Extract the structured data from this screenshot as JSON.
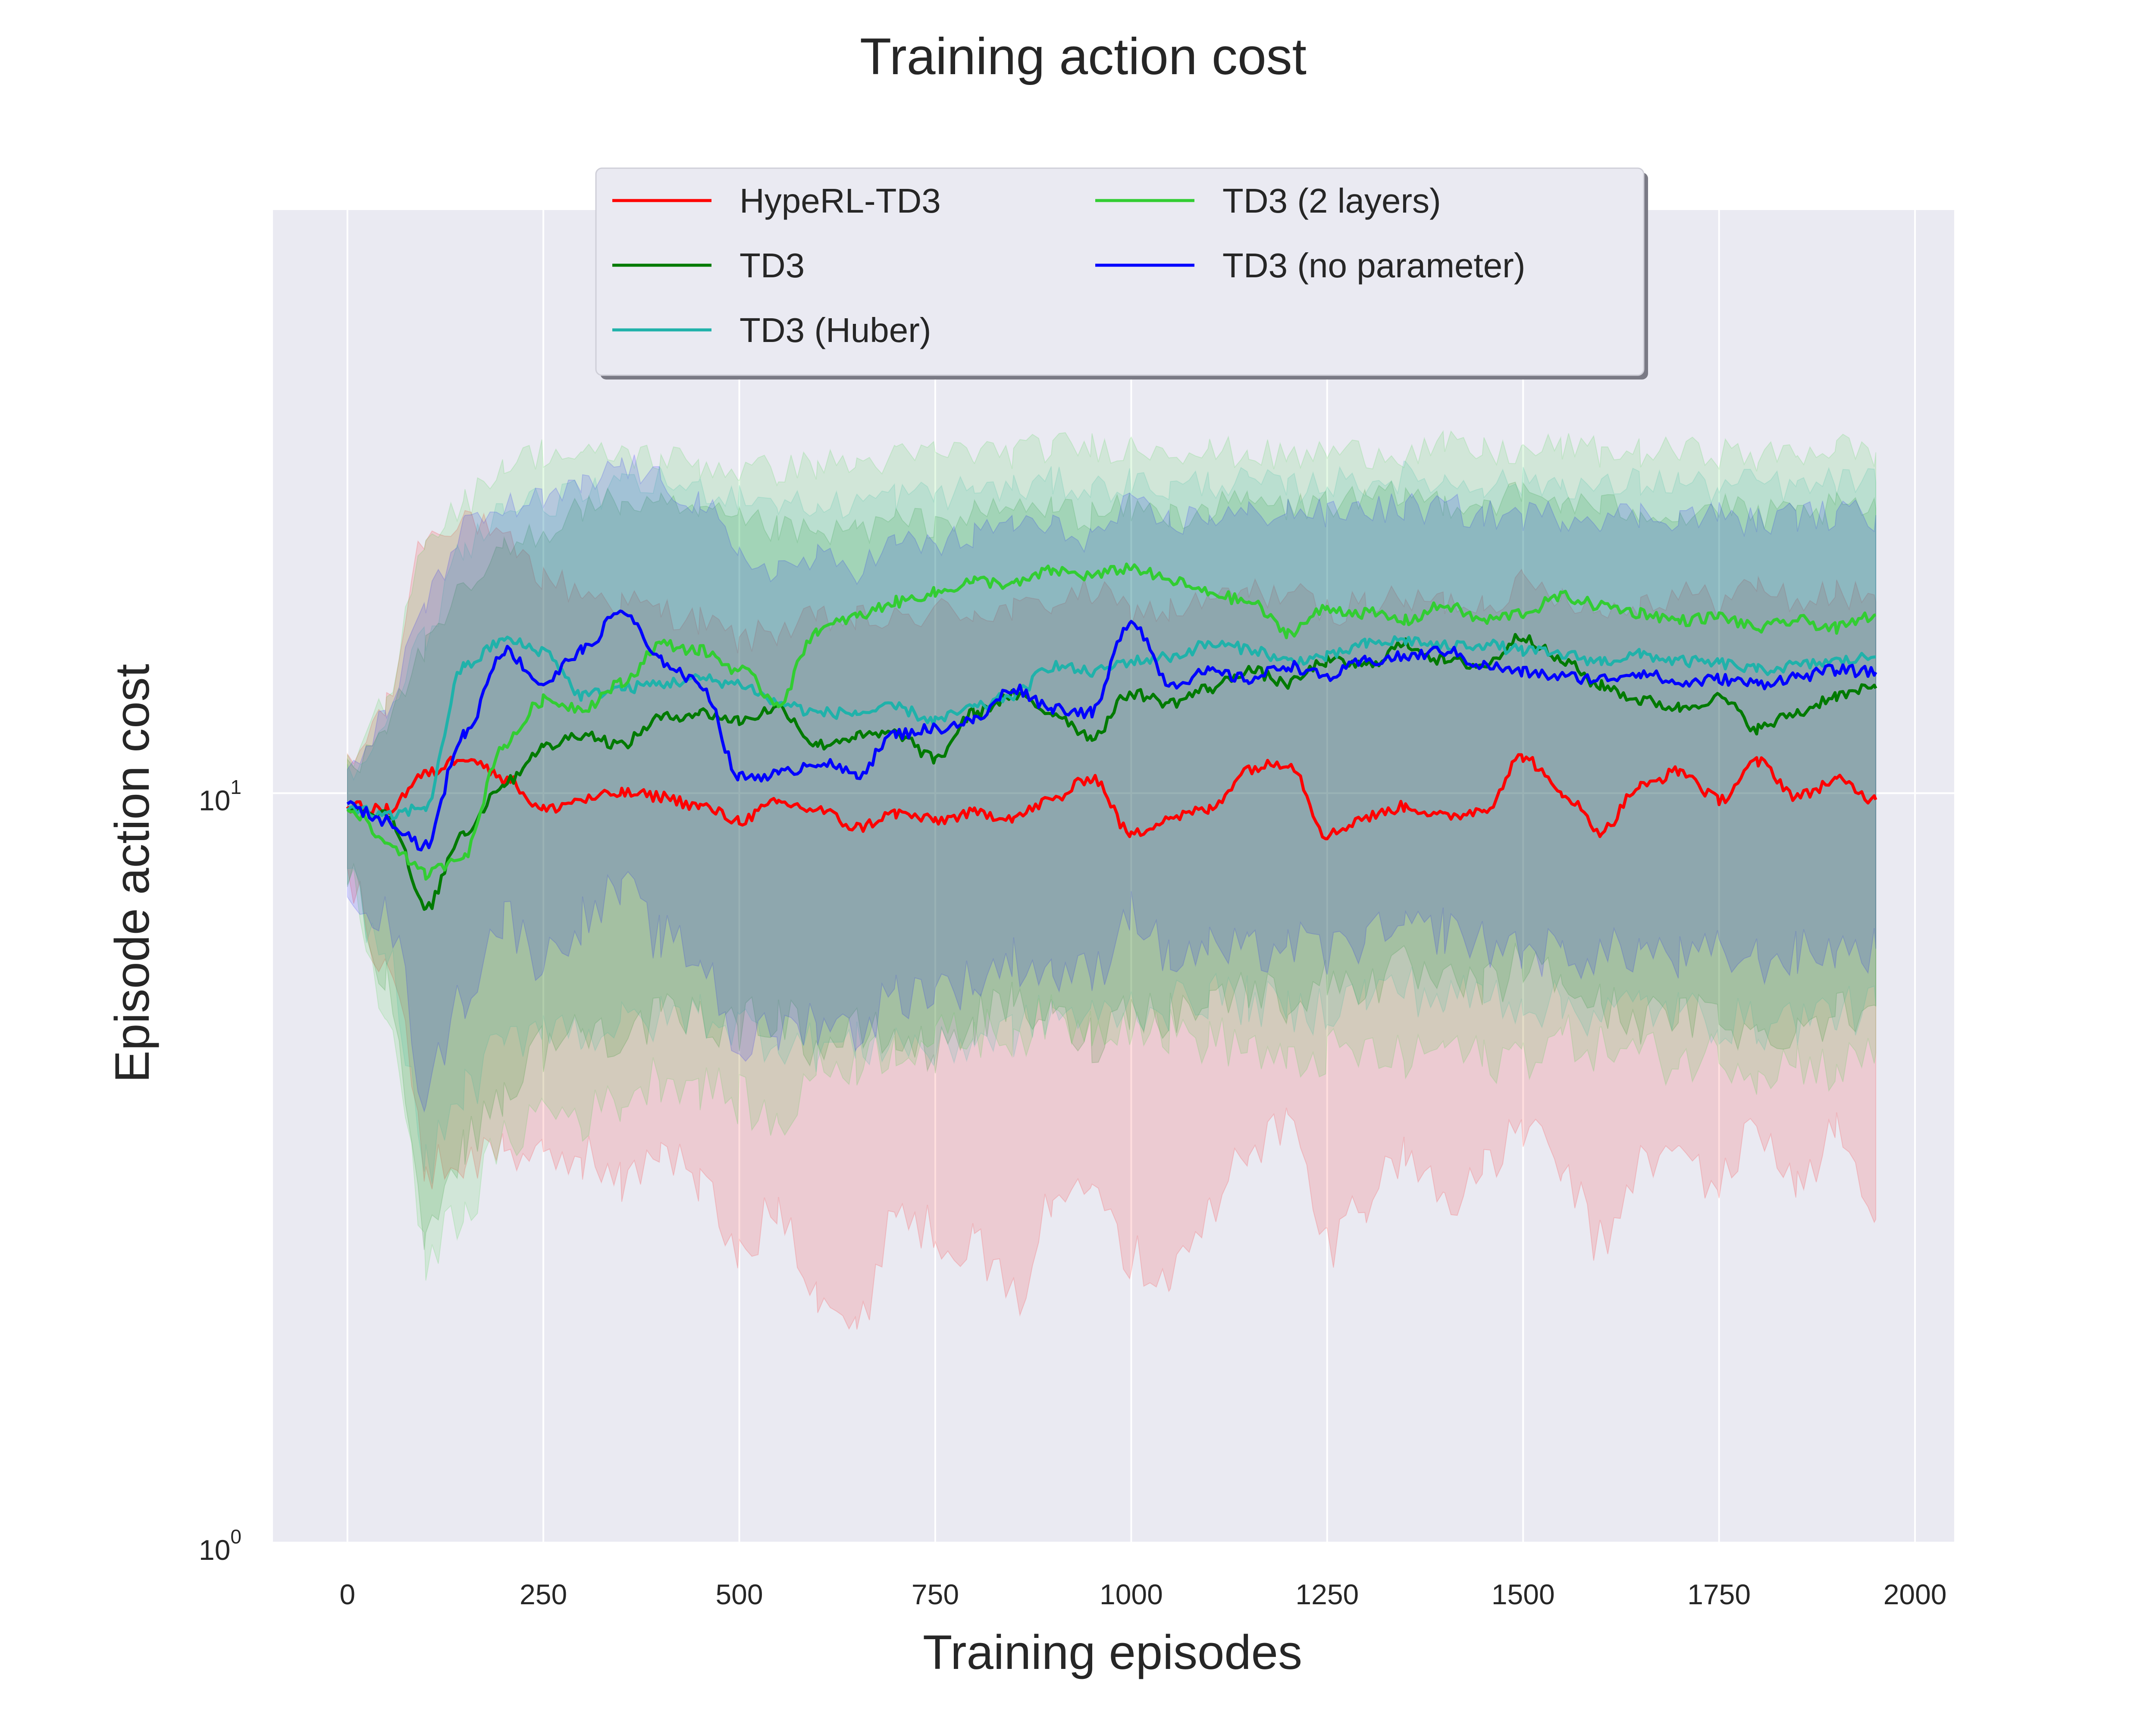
{
  "chart_data": {
    "type": "line",
    "title": "Training action cost",
    "xlabel": "Training episodes",
    "ylabel": "Episode action cost",
    "xlim": [
      -95,
      2050
    ],
    "ylim": [
      1,
      60
    ],
    "yscale": "log",
    "grid": true,
    "legend_position": "top-center",
    "x_ticks": [
      "0",
      "250",
      "500",
      "750",
      "1000",
      "1250",
      "1500",
      "1750",
      "2000"
    ],
    "y_ticks": [
      {
        "base": "10",
        "exp": "0",
        "value": 1
      },
      {
        "base": "10",
        "exp": "1",
        "value": 10
      }
    ],
    "x": [
      0,
      50,
      100,
      150,
      200,
      250,
      300,
      350,
      400,
      450,
      500,
      550,
      600,
      650,
      700,
      750,
      800,
      850,
      900,
      950,
      1000,
      1050,
      1100,
      1150,
      1200,
      1250,
      1300,
      1350,
      1400,
      1450,
      1500,
      1550,
      1600,
      1650,
      1700,
      1750,
      1800,
      1850,
      1900,
      1950
    ],
    "series": [
      {
        "name": "HypeRL-TD3",
        "color": "#ff0000",
        "values": [
          9.6,
          9.5,
          10.6,
          11.2,
          10.5,
          9.5,
          9.8,
          10.0,
          9.9,
          9.6,
          9.2,
          9.7,
          9.5,
          9.0,
          9.4,
          9.2,
          9.4,
          9.3,
          9.8,
          10.5,
          8.8,
          9.3,
          9.5,
          10.8,
          11.0,
          8.8,
          9.3,
          9.6,
          9.3,
          9.5,
          11.2,
          10.0,
          8.9,
          10.2,
          10.7,
          9.8,
          11.0,
          9.9,
          10.4,
          9.8
        ],
        "upper": [
          10.8,
          13.0,
          22.0,
          23.5,
          21.5,
          19.5,
          18.5,
          18.0,
          17.5,
          17.0,
          16.0,
          16.5,
          17.0,
          17.0,
          17.0,
          17.5,
          17.5,
          17.5,
          18.0,
          18.5,
          17.5,
          17.5,
          18.0,
          18.5,
          18.5,
          17.5,
          18.0,
          18.0,
          18.0,
          18.0,
          19.0,
          18.5,
          17.5,
          18.0,
          18.5,
          18.0,
          19.0,
          18.0,
          18.5,
          18.0
        ],
        "lower": [
          7.6,
          6.0,
          3.2,
          3.2,
          3.4,
          3.2,
          3.3,
          3.0,
          3.4,
          3.0,
          2.4,
          2.8,
          2.2,
          1.9,
          2.8,
          2.6,
          2.5,
          2.1,
          2.8,
          3.2,
          2.4,
          2.3,
          2.7,
          3.4,
          3.6,
          2.5,
          2.9,
          3.3,
          2.9,
          3.1,
          3.6,
          3.1,
          2.5,
          3.2,
          3.3,
          3.0,
          3.6,
          3.0,
          3.5,
          2.7
        ]
      },
      {
        "name": "TD3",
        "color": "#007a00",
        "values": [
          9.6,
          9.4,
          7.0,
          8.9,
          10.3,
          11.5,
          12.0,
          11.6,
          12.6,
          12.8,
          12.5,
          13.0,
          11.6,
          11.9,
          12.0,
          11.1,
          12.8,
          13.5,
          12.8,
          11.9,
          13.6,
          13.2,
          13.8,
          14.6,
          14.0,
          15.0,
          14.8,
          15.8,
          15.0,
          14.8,
          16.2,
          15.0,
          13.9,
          13.3,
          13.0,
          13.4,
          12.2,
          12.8,
          13.5,
          13.8
        ],
        "upper": [
          10.8,
          12.5,
          15.5,
          18.5,
          21.0,
          22.5,
          24.0,
          24.5,
          24.0,
          23.5,
          23.0,
          22.5,
          22.0,
          22.5,
          23.0,
          23.0,
          23.5,
          24.0,
          24.0,
          23.5,
          24.0,
          23.5,
          24.0,
          24.5,
          24.0,
          24.5,
          24.5,
          25.0,
          24.5,
          24.5,
          25.0,
          24.5,
          24.0,
          24.0,
          23.5,
          24.0,
          23.5,
          23.5,
          24.0,
          24.0
        ],
        "lower": [
          7.6,
          5.6,
          2.6,
          3.4,
          4.0,
          4.6,
          4.8,
          4.8,
          5.0,
          5.0,
          4.9,
          5.1,
          4.6,
          4.8,
          4.7,
          4.5,
          5.0,
          5.2,
          5.0,
          4.7,
          5.2,
          5.1,
          5.3,
          5.5,
          5.3,
          5.6,
          5.6,
          5.8,
          5.5,
          5.5,
          5.9,
          5.6,
          5.2,
          5.0,
          5.0,
          5.1,
          4.7,
          4.9,
          5.1,
          5.2
        ]
      },
      {
        "name": "TD3 (Huber)",
        "color": "#20b2aa",
        "values": [
          9.6,
          9.3,
          9.6,
          14.8,
          16.0,
          15.5,
          13.5,
          13.8,
          14.0,
          14.2,
          14.0,
          13.2,
          12.8,
          12.8,
          13.0,
          12.5,
          13.0,
          13.5,
          14.8,
          14.5,
          15.0,
          15.2,
          15.8,
          15.6,
          15.0,
          15.2,
          15.8,
          16.0,
          15.7,
          15.8,
          15.5,
          15.3,
          15.0,
          15.3,
          15.0,
          14.9,
          14.6,
          14.8,
          15.0,
          15.2
        ],
        "upper": [
          10.8,
          12.5,
          16.0,
          21.5,
          24.0,
          24.5,
          25.0,
          25.5,
          26.0,
          25.5,
          25.0,
          24.5,
          24.0,
          24.5,
          25.0,
          25.0,
          25.5,
          25.5,
          26.0,
          25.5,
          26.0,
          25.5,
          26.0,
          26.0,
          25.5,
          26.0,
          26.0,
          26.5,
          26.0,
          26.0,
          26.0,
          26.0,
          25.5,
          26.0,
          26.0,
          25.5,
          26.0,
          25.5,
          26.0,
          26.0
        ],
        "lower": [
          7.6,
          6.0,
          3.2,
          4.0,
          4.6,
          5.0,
          4.8,
          4.9,
          5.0,
          5.1,
          4.9,
          4.7,
          4.6,
          4.6,
          4.7,
          4.5,
          4.7,
          4.8,
          5.1,
          5.0,
          5.2,
          5.2,
          5.4,
          5.3,
          5.1,
          5.2,
          5.4,
          5.5,
          5.3,
          5.4,
          5.3,
          5.2,
          5.1,
          5.2,
          5.1,
          5.0,
          4.9,
          5.0,
          5.1,
          5.2
        ]
      },
      {
        "name": "TD3 (2 layers)",
        "color": "#32cd32",
        "values": [
          9.6,
          8.6,
          7.8,
          8.3,
          11.6,
          13.3,
          13.0,
          14.0,
          15.8,
          15.5,
          14.6,
          13.2,
          16.5,
          17.2,
          18.0,
          18.5,
          19.2,
          19.0,
          19.8,
          19.5,
          20.0,
          19.2,
          18.5,
          18.0,
          16.4,
          17.6,
          17.4,
          17.0,
          17.8,
          17.0,
          17.4,
          18.3,
          17.8,
          17.4,
          17.0,
          17.2,
          16.6,
          17.0,
          16.6,
          17.3
        ],
        "upper": [
          10.8,
          13.0,
          22.0,
          24.5,
          27.5,
          28.5,
          28.0,
          28.5,
          28.0,
          27.5,
          27.0,
          27.0,
          27.5,
          27.5,
          28.0,
          28.5,
          28.5,
          28.5,
          29.0,
          29.0,
          29.0,
          29.0,
          28.5,
          28.5,
          28.0,
          28.5,
          28.5,
          28.5,
          29.0,
          28.5,
          28.5,
          29.0,
          28.5,
          28.5,
          28.5,
          28.5,
          28.0,
          28.5,
          29.0,
          28.5
        ],
        "lower": [
          7.6,
          5.0,
          2.4,
          2.8,
          3.4,
          3.8,
          3.7,
          3.9,
          4.2,
          4.1,
          3.9,
          3.6,
          4.3,
          4.4,
          4.6,
          4.7,
          4.8,
          4.8,
          5.0,
          4.9,
          5.0,
          4.8,
          4.7,
          4.6,
          4.3,
          4.5,
          4.5,
          4.4,
          4.6,
          4.4,
          4.5,
          4.7,
          4.6,
          4.5,
          4.4,
          4.5,
          4.3,
          4.4,
          4.3,
          4.5
        ]
      },
      {
        "name": "TD3 (no parameter)",
        "color": "#0000ff",
        "values": [
          9.6,
          9.2,
          8.5,
          12.0,
          15.5,
          14.0,
          15.5,
          17.5,
          15.0,
          14.0,
          10.5,
          10.6,
          11.0,
          10.6,
          12.0,
          12.2,
          12.5,
          13.8,
          13.0,
          12.8,
          17.0,
          14.0,
          14.5,
          14.2,
          14.8,
          14.3,
          15.0,
          15.2,
          15.5,
          14.8,
          14.5,
          14.3,
          14.2,
          14.5,
          14.0,
          14.2,
          14.0,
          14.3,
          14.6,
          14.5
        ],
        "upper": [
          10.8,
          12.5,
          18.0,
          22.5,
          24.0,
          24.5,
          25.5,
          27.5,
          26.0,
          24.5,
          20.5,
          20.0,
          20.5,
          20.0,
          21.5,
          21.5,
          22.0,
          23.0,
          22.5,
          22.0,
          24.0,
          23.0,
          23.5,
          23.5,
          24.0,
          23.5,
          24.0,
          24.0,
          24.0,
          23.5,
          23.5,
          23.5,
          23.5,
          23.5,
          23.5,
          23.5,
          23.0,
          23.5,
          23.5,
          23.5
        ],
        "lower": [
          7.6,
          6.8,
          4.0,
          5.4,
          6.8,
          6.0,
          6.8,
          7.4,
          6.4,
          6.0,
          4.6,
          4.8,
          5.0,
          4.8,
          5.4,
          5.5,
          5.6,
          6.0,
          5.8,
          5.7,
          7.0,
          6.0,
          6.2,
          6.1,
          6.3,
          6.1,
          6.4,
          6.5,
          6.6,
          6.3,
          6.2,
          6.1,
          6.1,
          6.2,
          6.0,
          6.1,
          6.0,
          6.1,
          6.2,
          6.2
        ]
      }
    ]
  }
}
